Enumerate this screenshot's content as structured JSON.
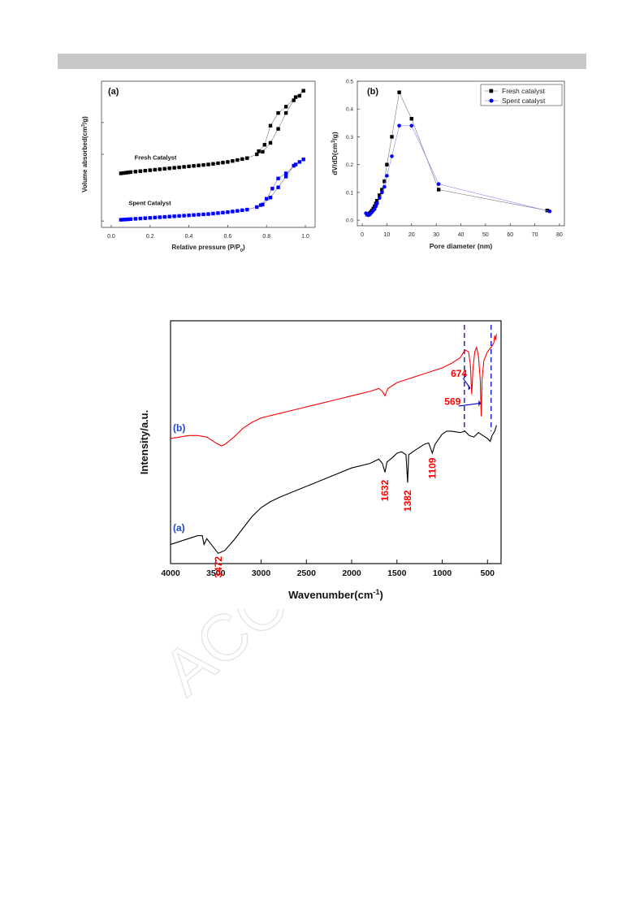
{
  "chart_data": [
    {
      "type": "scatter",
      "panel": "(a)",
      "xlabel": "Relative pressure (P/P",
      "xlabel_sub": "0",
      "xlabel_end": ")",
      "ylabel": "Volume absorbed(cm",
      "ylabel_sup": "3",
      "ylabel_end": "/g)",
      "xlim": [
        -0.05,
        1.05
      ],
      "xticks": [
        "0.0",
        "0.2",
        "0.4",
        "0.6",
        "0.8",
        "1.0"
      ],
      "yticks_labeled": false,
      "grid": false,
      "colors": {
        "fresh": "#000000",
        "spent": "#0000ff"
      },
      "annotations": [
        "Fresh Catalyst",
        "Spent Catalyst"
      ],
      "series": [
        {
          "name": "Fresh Catalyst",
          "adsorption": [
            [
              0.05,
              0.1
            ],
            [
              0.1,
              0.12
            ],
            [
              0.2,
              0.15
            ],
            [
              0.3,
              0.18
            ],
            [
              0.4,
              0.21
            ],
            [
              0.5,
              0.24
            ],
            [
              0.6,
              0.28
            ],
            [
              0.7,
              0.34
            ],
            [
              0.75,
              0.4
            ],
            [
              0.78,
              0.44
            ],
            [
              0.82,
              0.58
            ],
            [
              0.86,
              0.8
            ],
            [
              0.9,
              1.05
            ],
            [
              0.94,
              1.25
            ],
            [
              0.97,
              1.32
            ],
            [
              0.99,
              1.4
            ]
          ],
          "desorption": [
            [
              0.99,
              1.4
            ],
            [
              0.95,
              1.3
            ],
            [
              0.9,
              1.15
            ],
            [
              0.86,
              1.05
            ],
            [
              0.82,
              0.85
            ],
            [
              0.79,
              0.55
            ],
            [
              0.76,
              0.45
            ]
          ]
        },
        {
          "name": "Spent Catalyst",
          "adsorption": [
            [
              0.05,
              -0.63
            ],
            [
              0.1,
              -0.62
            ],
            [
              0.2,
              -0.6
            ],
            [
              0.3,
              -0.58
            ],
            [
              0.4,
              -0.56
            ],
            [
              0.5,
              -0.54
            ],
            [
              0.6,
              -0.51
            ],
            [
              0.7,
              -0.47
            ],
            [
              0.75,
              -0.43
            ],
            [
              0.78,
              -0.39
            ],
            [
              0.82,
              -0.28
            ],
            [
              0.86,
              -0.12
            ],
            [
              0.9,
              0.05
            ],
            [
              0.94,
              0.22
            ],
            [
              0.97,
              0.28
            ],
            [
              0.99,
              0.32
            ]
          ],
          "desorption": [
            [
              0.99,
              0.32
            ],
            [
              0.95,
              0.24
            ],
            [
              0.9,
              0.1
            ],
            [
              0.86,
              0.02
            ],
            [
              0.83,
              -0.14
            ],
            [
              0.8,
              -0.3
            ],
            [
              0.77,
              -0.4
            ]
          ]
        }
      ]
    },
    {
      "type": "line",
      "panel": "(b)",
      "xlabel": "Pore diameter (nm)",
      "ylabel": "dV/dD(cm",
      "ylabel_sup": "3",
      "ylabel_end": "/g)",
      "xlim": [
        -2,
        82
      ],
      "ylim": [
        -0.02,
        0.5
      ],
      "xticks": [
        "0",
        "10",
        "20",
        "30",
        "40",
        "50",
        "60",
        "70",
        "80"
      ],
      "yticks": [
        "0.0",
        "0.1",
        "0.2",
        "0.3",
        "0.4",
        "0.5"
      ],
      "legend": "top-right",
      "grid": false,
      "series": [
        {
          "name": "Fresh catalyst",
          "color": "#000000",
          "marker": "square",
          "x": [
            2,
            2.5,
            3,
            3.5,
            4,
            4.5,
            5,
            5.5,
            6,
            7,
            8,
            9,
            10,
            12,
            15,
            20,
            31,
            75
          ],
          "y": [
            0.02,
            0.022,
            0.025,
            0.03,
            0.035,
            0.042,
            0.05,
            0.06,
            0.07,
            0.09,
            0.11,
            0.14,
            0.2,
            0.3,
            0.46,
            0.365,
            0.11,
            0.035
          ]
        },
        {
          "name": "Spent catalyst",
          "color": "#0000ff",
          "marker": "circle",
          "x": [
            1.5,
            2,
            2.5,
            3,
            3.5,
            4,
            4.5,
            5,
            5.5,
            6,
            7,
            8,
            9,
            10,
            12,
            15,
            20,
            31,
            76
          ],
          "y": [
            0.025,
            0.02,
            0.018,
            0.02,
            0.025,
            0.03,
            0.035,
            0.04,
            0.05,
            0.06,
            0.08,
            0.1,
            0.12,
            0.16,
            0.23,
            0.34,
            0.34,
            0.13,
            0.032
          ]
        }
      ]
    },
    {
      "type": "line",
      "xlabel": "Wavenumber(cm",
      "xlabel_sup": "-1",
      "xlabel_end": ")",
      "ylabel": "Intensity/a.u.",
      "xlim": [
        4000,
        350
      ],
      "xticks": [
        "4000",
        "3500",
        "3000",
        "2500",
        "2000",
        "1500",
        "1000",
        "500"
      ],
      "yticks_labeled": false,
      "grid": false,
      "series": [
        {
          "name": "(a)",
          "color": "#000000",
          "points": [
            [
              4000,
              0.18
            ],
            [
              3800,
              0.22
            ],
            [
              3700,
              0.24
            ],
            [
              3650,
              0.24
            ],
            [
              3630,
              0.18
            ],
            [
              3600,
              0.22
            ],
            [
              3550,
              0.18
            ],
            [
              3500,
              0.14
            ],
            [
              3472,
              0.12
            ],
            [
              3400,
              0.14
            ],
            [
              3300,
              0.21
            ],
            [
              3200,
              0.29
            ],
            [
              3100,
              0.37
            ],
            [
              3000,
              0.43
            ],
            [
              2900,
              0.47
            ],
            [
              2800,
              0.5
            ],
            [
              2600,
              0.55
            ],
            [
              2400,
              0.6
            ],
            [
              2200,
              0.65
            ],
            [
              2000,
              0.7
            ],
            [
              1800,
              0.73
            ],
            [
              1700,
              0.76
            ],
            [
              1660,
              0.73
            ],
            [
              1632,
              0.67
            ],
            [
              1610,
              0.74
            ],
            [
              1550,
              0.77
            ],
            [
              1500,
              0.8
            ],
            [
              1450,
              0.81
            ],
            [
              1400,
              0.79
            ],
            [
              1382,
              0.6
            ],
            [
              1370,
              0.79
            ],
            [
              1300,
              0.82
            ],
            [
              1200,
              0.86
            ],
            [
              1150,
              0.87
            ],
            [
              1109,
              0.8
            ],
            [
              1080,
              0.86
            ],
            [
              1000,
              0.93
            ],
            [
              950,
              0.95
            ],
            [
              900,
              0.95
            ],
            [
              800,
              0.94
            ],
            [
              750,
              0.95
            ],
            [
              700,
              0.92
            ],
            [
              650,
              0.91
            ],
            [
              600,
              0.94
            ],
            [
              550,
              0.92
            ],
            [
              500,
              0.9
            ],
            [
              470,
              0.88
            ],
            [
              450,
              0.92
            ],
            [
              420,
              0.95
            ],
            [
              400,
              0.99
            ]
          ]
        },
        {
          "name": "(b)",
          "color": "#ff0000",
          "points": [
            [
              4000,
              0.9
            ],
            [
              3800,
              0.92
            ],
            [
              3700,
              0.92
            ],
            [
              3600,
              0.91
            ],
            [
              3500,
              0.87
            ],
            [
              3440,
              0.85
            ],
            [
              3400,
              0.86
            ],
            [
              3300,
              0.91
            ],
            [
              3200,
              0.97
            ],
            [
              3100,
              1.01
            ],
            [
              3000,
              1.04
            ],
            [
              2800,
              1.07
            ],
            [
              2600,
              1.1
            ],
            [
              2400,
              1.13
            ],
            [
              2200,
              1.16
            ],
            [
              2000,
              1.19
            ],
            [
              1800,
              1.22
            ],
            [
              1700,
              1.24
            ],
            [
              1660,
              1.22
            ],
            [
              1632,
              1.19
            ],
            [
              1600,
              1.24
            ],
            [
              1500,
              1.28
            ],
            [
              1400,
              1.3
            ],
            [
              1300,
              1.32
            ],
            [
              1200,
              1.34
            ],
            [
              1100,
              1.36
            ],
            [
              1000,
              1.38
            ],
            [
              900,
              1.41
            ],
            [
              800,
              1.45
            ],
            [
              760,
              1.49
            ],
            [
              740,
              1.5
            ],
            [
              710,
              1.49
            ],
            [
              690,
              1.41
            ],
            [
              674,
              1.2
            ],
            [
              660,
              1.38
            ],
            [
              640,
              1.49
            ],
            [
              620,
              1.52
            ],
            [
              600,
              1.46
            ],
            [
              580,
              1.3
            ],
            [
              569,
              1.05
            ],
            [
              560,
              1.3
            ],
            [
              540,
              1.43
            ],
            [
              500,
              1.49
            ],
            [
              460,
              1.52
            ],
            [
              430,
              1.55
            ],
            [
              420,
              1.6
            ],
            [
              410,
              1.57
            ],
            [
              400,
              1.61
            ]
          ]
        }
      ],
      "peak_labels": [
        {
          "text": "3472",
          "color": "#ff0000"
        },
        {
          "text": "1632",
          "color": "#ff0000"
        },
        {
          "text": "1382",
          "color": "#ff0000"
        },
        {
          "text": "1109",
          "color": "#ff0000"
        },
        {
          "text": "674",
          "color": "#ff0000"
        },
        {
          "text": "569",
          "color": "#ff0000"
        }
      ],
      "reference_lines": [
        755,
        460
      ],
      "curve_labels": [
        "(b)",
        "(a)"
      ]
    }
  ]
}
